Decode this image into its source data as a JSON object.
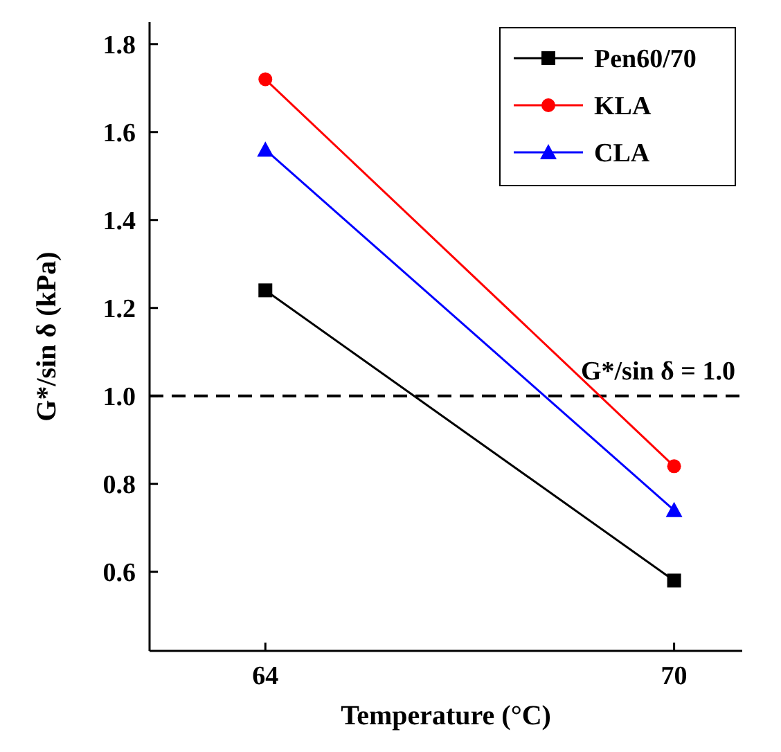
{
  "chart_data": {
    "type": "line",
    "xlabel": "Temperature (°C)",
    "ylabel": "G*/sin δ (kPa)",
    "x": [
      64,
      70
    ],
    "xlim": [
      62.3,
      71
    ],
    "xticks": [
      64,
      70
    ],
    "ylim": [
      0.42,
      1.85
    ],
    "yticks": [
      0.6,
      0.8,
      {
        "value": 1.0,
        "label": "1.0"
      },
      1.2,
      1.4,
      1.6,
      1.8
    ],
    "series": [
      {
        "name": "Pen60/70",
        "color": "#000000",
        "marker": "square",
        "values": [
          1.24,
          0.58
        ]
      },
      {
        "name": "KLA",
        "color": "#ff0000",
        "marker": "circle",
        "values": [
          1.72,
          0.84
        ]
      },
      {
        "name": "CLA",
        "color": "#0000ff",
        "marker": "triangle",
        "values": [
          1.56,
          0.74
        ]
      }
    ],
    "ref_lines": [
      {
        "axis": "y",
        "value": 1.0,
        "label": "G*/sin δ = 1.0",
        "color": "#000000",
        "line_style": "dashed"
      }
    ],
    "legend": "top right",
    "grid": false,
    "line_style": "solid"
  }
}
